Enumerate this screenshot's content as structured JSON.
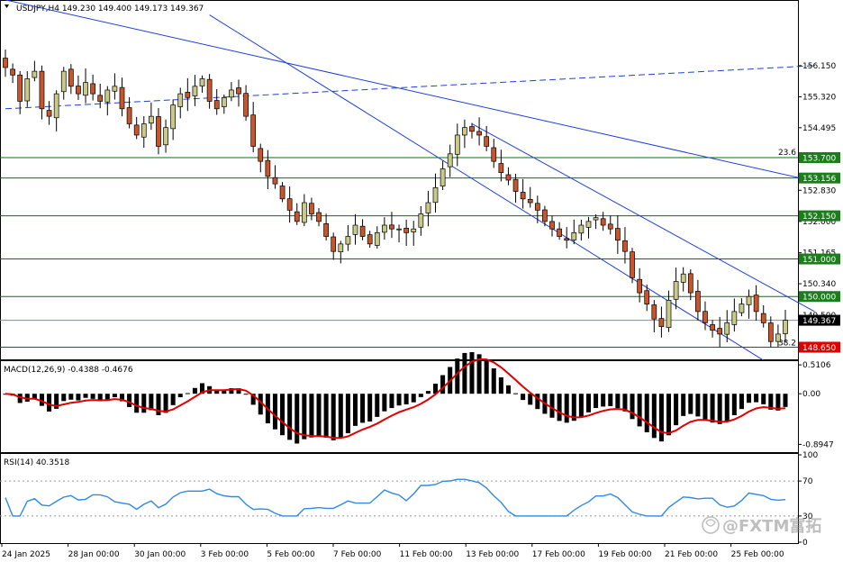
{
  "chart_data": [
    {
      "type": "candlestick",
      "title": "USDJPY,H4  149.230 149.400 149.173 149.367",
      "y_ticks": [
        "156.150",
        "155.320",
        "154.495",
        "153.700",
        "153.156",
        "152.830",
        "152.150",
        "152.000",
        "151.165",
        "151.000",
        "150.340",
        "150.000",
        "149.500",
        "149.367",
        "148.650"
      ],
      "price_box_labels": [
        {
          "value": 153.7,
          "label": "153.700",
          "bg": "#1a7f1a"
        },
        {
          "value": 153.156,
          "label": "153.156",
          "bg": "#1a7f1a"
        },
        {
          "value": 152.15,
          "label": "152.150",
          "bg": "#1a7f1a"
        },
        {
          "value": 151.0,
          "label": "151.000",
          "bg": "#1a7f1a"
        },
        {
          "value": 150.0,
          "label": "150.000",
          "bg": "#1a7f1a"
        },
        {
          "value": 149.367,
          "label": "149.367",
          "bg": "#000000"
        },
        {
          "value": 148.65,
          "label": "148.650",
          "bg": "#e00000"
        }
      ],
      "horizontal_levels": [
        {
          "value": 153.7,
          "color": "#007700",
          "note": "23.6"
        },
        {
          "value": 153.156,
          "color": "#007700"
        },
        {
          "value": 152.15,
          "color": "#007700"
        },
        {
          "value": 151.0,
          "color": "#007700"
        },
        {
          "value": 150.0,
          "color": "#007700"
        },
        {
          "value": 149.367,
          "color": "#8080cc"
        },
        {
          "value": 148.65,
          "color": "#e00000",
          "note": "38.2"
        }
      ],
      "x_labels": [
        "24 Jan 2025",
        "28 Jan 00:00",
        "30 Jan 00:00",
        "3 Feb 00:00",
        "5 Feb 00:00",
        "7 Feb 00:00",
        "11 Feb 00:00",
        "13 Feb 00:00",
        "17 Feb 00:00",
        "19 Feb 00:00",
        "21 Feb 00:00",
        "25 Feb 00:00"
      ],
      "close_path": [
        156.1,
        155.9,
        155.2,
        155.8,
        156.0,
        155.0,
        154.8,
        155.4,
        156.0,
        155.6,
        155.4,
        155.7,
        155.4,
        155.2,
        155.5,
        155.6,
        155.0,
        154.6,
        154.3,
        154.6,
        154.8,
        154.0,
        154.5,
        155.1,
        155.4,
        155.3,
        155.6,
        155.8,
        155.2,
        155.0,
        155.3,
        155.5,
        155.4,
        154.8,
        154.0,
        153.6,
        153.2,
        153.0,
        152.6,
        152.3,
        152.0,
        152.5,
        152.2,
        152.0,
        151.6,
        151.2,
        151.4,
        151.6,
        151.9,
        151.6,
        151.4,
        151.7,
        151.9,
        151.8,
        151.8,
        151.7,
        151.8,
        152.2,
        152.5,
        152.9,
        153.4,
        153.8,
        154.3,
        154.5,
        154.4,
        154.3,
        154.0,
        153.6,
        153.3,
        153.1,
        152.8,
        152.6,
        152.5,
        152.3,
        152.0,
        151.8,
        151.6,
        151.5,
        151.7,
        151.9,
        152.0,
        152.1,
        151.9,
        151.8,
        151.5,
        151.2,
        150.5,
        150.1,
        149.8,
        149.4,
        149.2,
        149.9,
        150.4,
        150.6,
        150.1,
        149.6,
        149.3,
        149.1,
        149.0,
        149.3,
        149.6,
        149.8,
        150.0,
        149.6,
        149.3,
        148.8,
        149.0,
        149.367
      ],
      "trend_lines": [
        {
          "from": [
            0,
            155.0
          ],
          "to": [
            111,
            156.15
          ],
          "style": "dashed",
          "color": "#1f3fd8"
        },
        {
          "from": [
            0,
            157.9
          ],
          "to": [
            111,
            153.07
          ],
          "style": "solid",
          "color": "#1f3fd8"
        },
        {
          "from": [
            28,
            157.5
          ],
          "to": [
            104,
            148.3
          ],
          "style": "solid",
          "color": "#1f3fd8"
        },
        {
          "from": [
            64,
            154.6
          ],
          "to": [
            111,
            149.6
          ],
          "style": "solid",
          "color": "#1f3fd8"
        }
      ],
      "y_range": [
        148.35,
        157.85
      ]
    },
    {
      "type": "bar+line",
      "title": "MACD(12,26,9) -0.4388 -0.4676",
      "y_ticks": [
        "0.5106",
        "0.00",
        "-0.8947"
      ],
      "y_range": [
        -1.0,
        0.56
      ],
      "main_color": "#000000",
      "signal_color": "#e00000"
    },
    {
      "type": "line",
      "title": "RSI(14) 40.3518",
      "y_ticks": [
        "100",
        "70",
        "30",
        "0"
      ],
      "y_range": [
        0,
        100
      ],
      "line_color": "#2f89e6"
    }
  ],
  "watermark": "@FXTM富拓"
}
